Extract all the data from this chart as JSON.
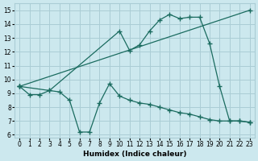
{
  "xlabel": "Humidex (Indice chaleur)",
  "bg_color": "#cce8ee",
  "grid_color": "#aacdd5",
  "line_color": "#1a6b5f",
  "xlim": [
    -0.5,
    23.5
  ],
  "ylim": [
    5.8,
    15.5
  ],
  "yticks": [
    6,
    7,
    8,
    9,
    10,
    11,
    12,
    13,
    14,
    15
  ],
  "xticks": [
    0,
    1,
    2,
    3,
    4,
    5,
    6,
    7,
    8,
    9,
    10,
    11,
    12,
    13,
    14,
    15,
    16,
    17,
    18,
    19,
    20,
    21,
    22,
    23
  ],
  "series": [
    {
      "x": [
        0,
        1,
        2,
        3,
        4,
        5,
        6,
        7,
        8,
        9,
        10,
        11,
        12,
        13,
        14,
        15,
        16,
        17,
        18,
        19,
        20,
        21,
        22,
        23
      ],
      "y": [
        9.5,
        8.9,
        8.9,
        9.2,
        9.1,
        8.5,
        6.2,
        6.2,
        8.3,
        9.7,
        8.8,
        8.5,
        8.3,
        8.2,
        8.0,
        7.8,
        7.6,
        7.5,
        7.3,
        7.1,
        7.0,
        7.0,
        7.0,
        6.9
      ]
    },
    {
      "x": [
        0,
        3,
        10,
        11,
        12,
        13,
        14,
        15,
        16,
        17,
        18,
        19,
        20,
        21,
        22,
        23
      ],
      "y": [
        9.5,
        9.2,
        13.5,
        12.1,
        12.5,
        13.5,
        14.3,
        14.7,
        14.4,
        14.5,
        14.5,
        12.6,
        9.5,
        7.0,
        7.0,
        6.9
      ]
    },
    {
      "x": [
        0,
        23
      ],
      "y": [
        9.5,
        15.0
      ]
    }
  ]
}
